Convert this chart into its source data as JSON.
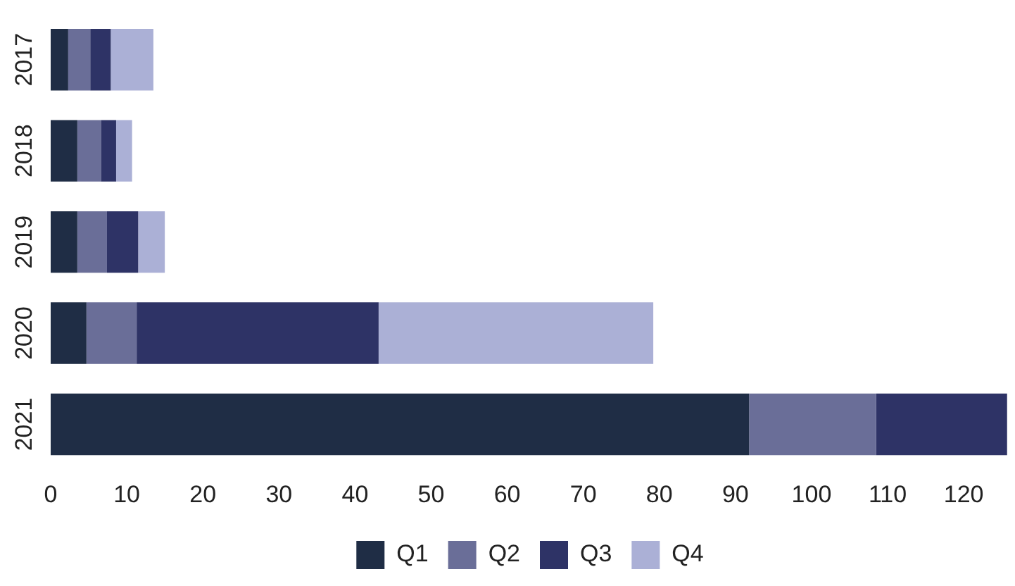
{
  "chart_data": {
    "type": "bar",
    "orientation": "horizontal",
    "stacked": true,
    "categories": [
      "2017",
      "2018",
      "2019",
      "2020",
      "2021"
    ],
    "series": [
      {
        "name": "Q1",
        "color": "#1f2d45",
        "values": [
          2.3,
          3.5,
          3.5,
          4.7,
          91.8
        ]
      },
      {
        "name": "Q2",
        "color": "#6a6e98",
        "values": [
          2.9,
          3.1,
          3.9,
          6.6,
          16.7
        ]
      },
      {
        "name": "Q3",
        "color": "#2e3366",
        "values": [
          2.7,
          2.0,
          4.1,
          31.8,
          17.2
        ]
      },
      {
        "name": "Q4",
        "color": "#abb0d6",
        "values": [
          5.6,
          2.1,
          3.5,
          36.1,
          null
        ]
      }
    ],
    "xlim": [
      0,
      126
    ],
    "xticks": [
      0,
      10,
      20,
      30,
      40,
      50,
      60,
      70,
      80,
      90,
      100,
      110,
      120
    ],
    "grid": false,
    "legend": "bottom"
  }
}
